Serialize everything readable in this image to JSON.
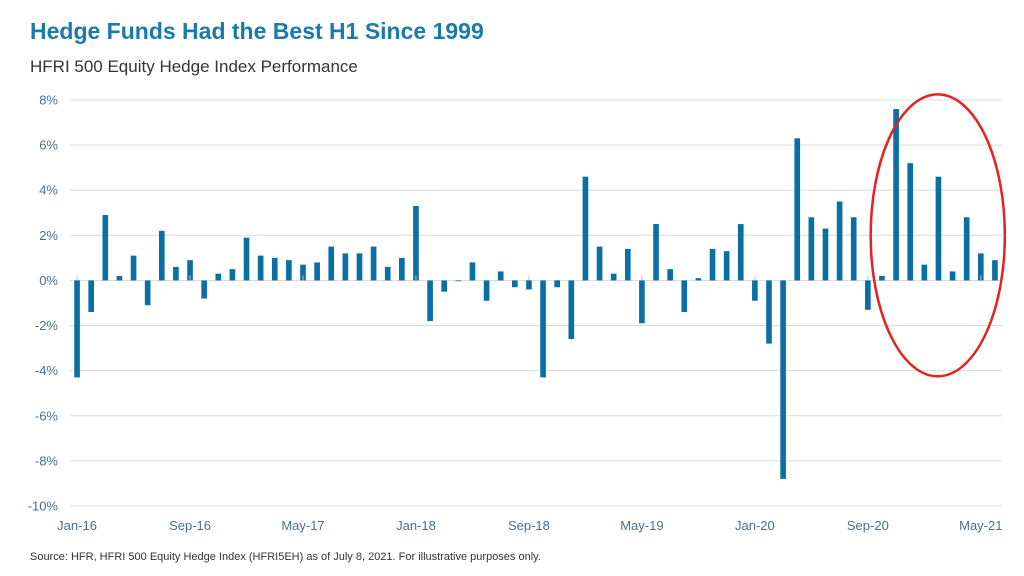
{
  "title": "Hedge Funds Had the Best H1 Since 1999",
  "subtitle": "HFRI 500 Equity Hedge Index Performance",
  "source": "Source: HFR, HFRI 500 Equity Hedge Index (HFRI5EH) as of July 8, 2021. For illustrative purposes only.",
  "colors": {
    "bar": "#0a6fa5",
    "highlight": "#e8211f",
    "grid": "#dcdcdc",
    "title": "#1a7aad"
  },
  "chart_data": {
    "type": "bar",
    "title": "Hedge Funds Had the Best H1 Since 1999",
    "subtitle": "HFRI 500 Equity Hedge Index Performance",
    "xlabel": "",
    "ylabel": "",
    "ylim": [
      -10,
      8
    ],
    "yticks": [
      8,
      6,
      4,
      2,
      0,
      -2,
      -4,
      -6,
      -8,
      -10
    ],
    "ytick_labels": [
      "8%",
      "6%",
      "4%",
      "2%",
      "0%",
      "-2%",
      "-4%",
      "-6%",
      "-8%",
      "-10%"
    ],
    "grid": true,
    "xtick_labels": [
      "Jan-16",
      "Sep-16",
      "May-17",
      "Jan-18",
      "Sep-18",
      "May-19",
      "Jan-20",
      "Sep-20",
      "May-21"
    ],
    "xtick_every": 8,
    "categories": [
      "Jan-16",
      "Feb-16",
      "Mar-16",
      "Apr-16",
      "May-16",
      "Jun-16",
      "Jul-16",
      "Aug-16",
      "Sep-16",
      "Oct-16",
      "Nov-16",
      "Dec-16",
      "Jan-17",
      "Feb-17",
      "Mar-17",
      "Apr-17",
      "May-17",
      "Jun-17",
      "Jul-17",
      "Aug-17",
      "Sep-17",
      "Oct-17",
      "Nov-17",
      "Dec-17",
      "Jan-18",
      "Feb-18",
      "Mar-18",
      "Apr-18",
      "May-18",
      "Jun-18",
      "Jul-18",
      "Aug-18",
      "Sep-18",
      "Oct-18",
      "Nov-18",
      "Dec-18",
      "Jan-19",
      "Feb-19",
      "Mar-19",
      "Apr-19",
      "May-19",
      "Jun-19",
      "Jul-19",
      "Aug-19",
      "Sep-19",
      "Oct-19",
      "Nov-19",
      "Dec-19",
      "Jan-20",
      "Feb-20",
      "Mar-20",
      "Apr-20",
      "May-20",
      "Jun-20",
      "Jul-20",
      "Aug-20",
      "Sep-20",
      "Oct-20",
      "Nov-20",
      "Dec-20",
      "Jan-21",
      "Feb-21",
      "Mar-21",
      "Apr-21",
      "May-21",
      "Jun-21"
    ],
    "series": [
      {
        "name": "HFRI 500 Equity Hedge Index",
        "values": [
          -4.3,
          -1.4,
          2.9,
          0.2,
          1.1,
          -1.1,
          2.2,
          0.6,
          0.9,
          -0.8,
          0.3,
          0.5,
          1.9,
          1.1,
          1.0,
          0.9,
          0.7,
          0.8,
          1.5,
          1.2,
          1.2,
          1.5,
          0.6,
          1.0,
          3.3,
          -1.8,
          -0.5,
          0.0,
          0.8,
          -0.9,
          0.4,
          -0.3,
          -0.4,
          -4.3,
          -0.3,
          -2.6,
          4.6,
          1.5,
          0.3,
          1.4,
          -1.9,
          2.5,
          0.5,
          -1.4,
          0.1,
          1.4,
          1.3,
          2.5,
          -0.9,
          -2.8,
          -8.8,
          6.3,
          2.8,
          2.3,
          3.5,
          2.8,
          -1.3,
          0.2,
          7.6,
          5.2,
          0.7,
          4.6,
          0.4,
          2.8,
          1.2,
          0.9
        ]
      }
    ],
    "annotations": [
      {
        "type": "ellipse",
        "color": "#e8211f",
        "covers": [
          "Nov-20",
          "Jun-21"
        ]
      }
    ]
  }
}
